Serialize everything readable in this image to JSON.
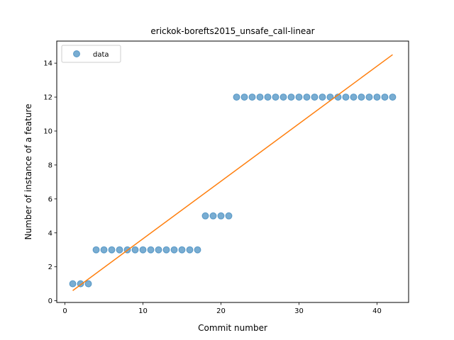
{
  "chart_data": {
    "type": "scatter",
    "title": "erickok-borefts2015_unsafe_call-linear",
    "xlabel": "Commit number",
    "ylabel": "Number of instance of a feature",
    "xlim": [
      -1.05,
      44.05
    ],
    "ylim": [
      -0.1,
      15.3
    ],
    "xticks": [
      0,
      10,
      20,
      30,
      40
    ],
    "yticks": [
      0,
      2,
      4,
      6,
      8,
      10,
      12,
      14
    ],
    "grid": false,
    "legend": {
      "position": "top-left",
      "entries": [
        "data"
      ]
    },
    "series": [
      {
        "name": "data",
        "kind": "scatter",
        "color": "#1f77b4",
        "x": [
          1,
          2,
          3,
          4,
          5,
          6,
          7,
          8,
          9,
          10,
          11,
          12,
          13,
          14,
          15,
          16,
          17,
          18,
          19,
          20,
          21,
          22,
          23,
          24,
          25,
          26,
          27,
          28,
          29,
          30,
          31,
          32,
          33,
          34,
          35,
          36,
          37,
          38,
          39,
          40,
          41,
          42
        ],
        "y": [
          1,
          1,
          1,
          3,
          3,
          3,
          3,
          3,
          3,
          3,
          3,
          3,
          3,
          3,
          3,
          3,
          3,
          5,
          5,
          5,
          5,
          12,
          12,
          12,
          12,
          12,
          12,
          12,
          12,
          12,
          12,
          12,
          12,
          12,
          12,
          12,
          12,
          12,
          12,
          12,
          12,
          12
        ]
      },
      {
        "kind": "line",
        "color": "#ff7f0e",
        "x": [
          1,
          42
        ],
        "y": [
          0.6,
          14.5
        ]
      }
    ]
  }
}
